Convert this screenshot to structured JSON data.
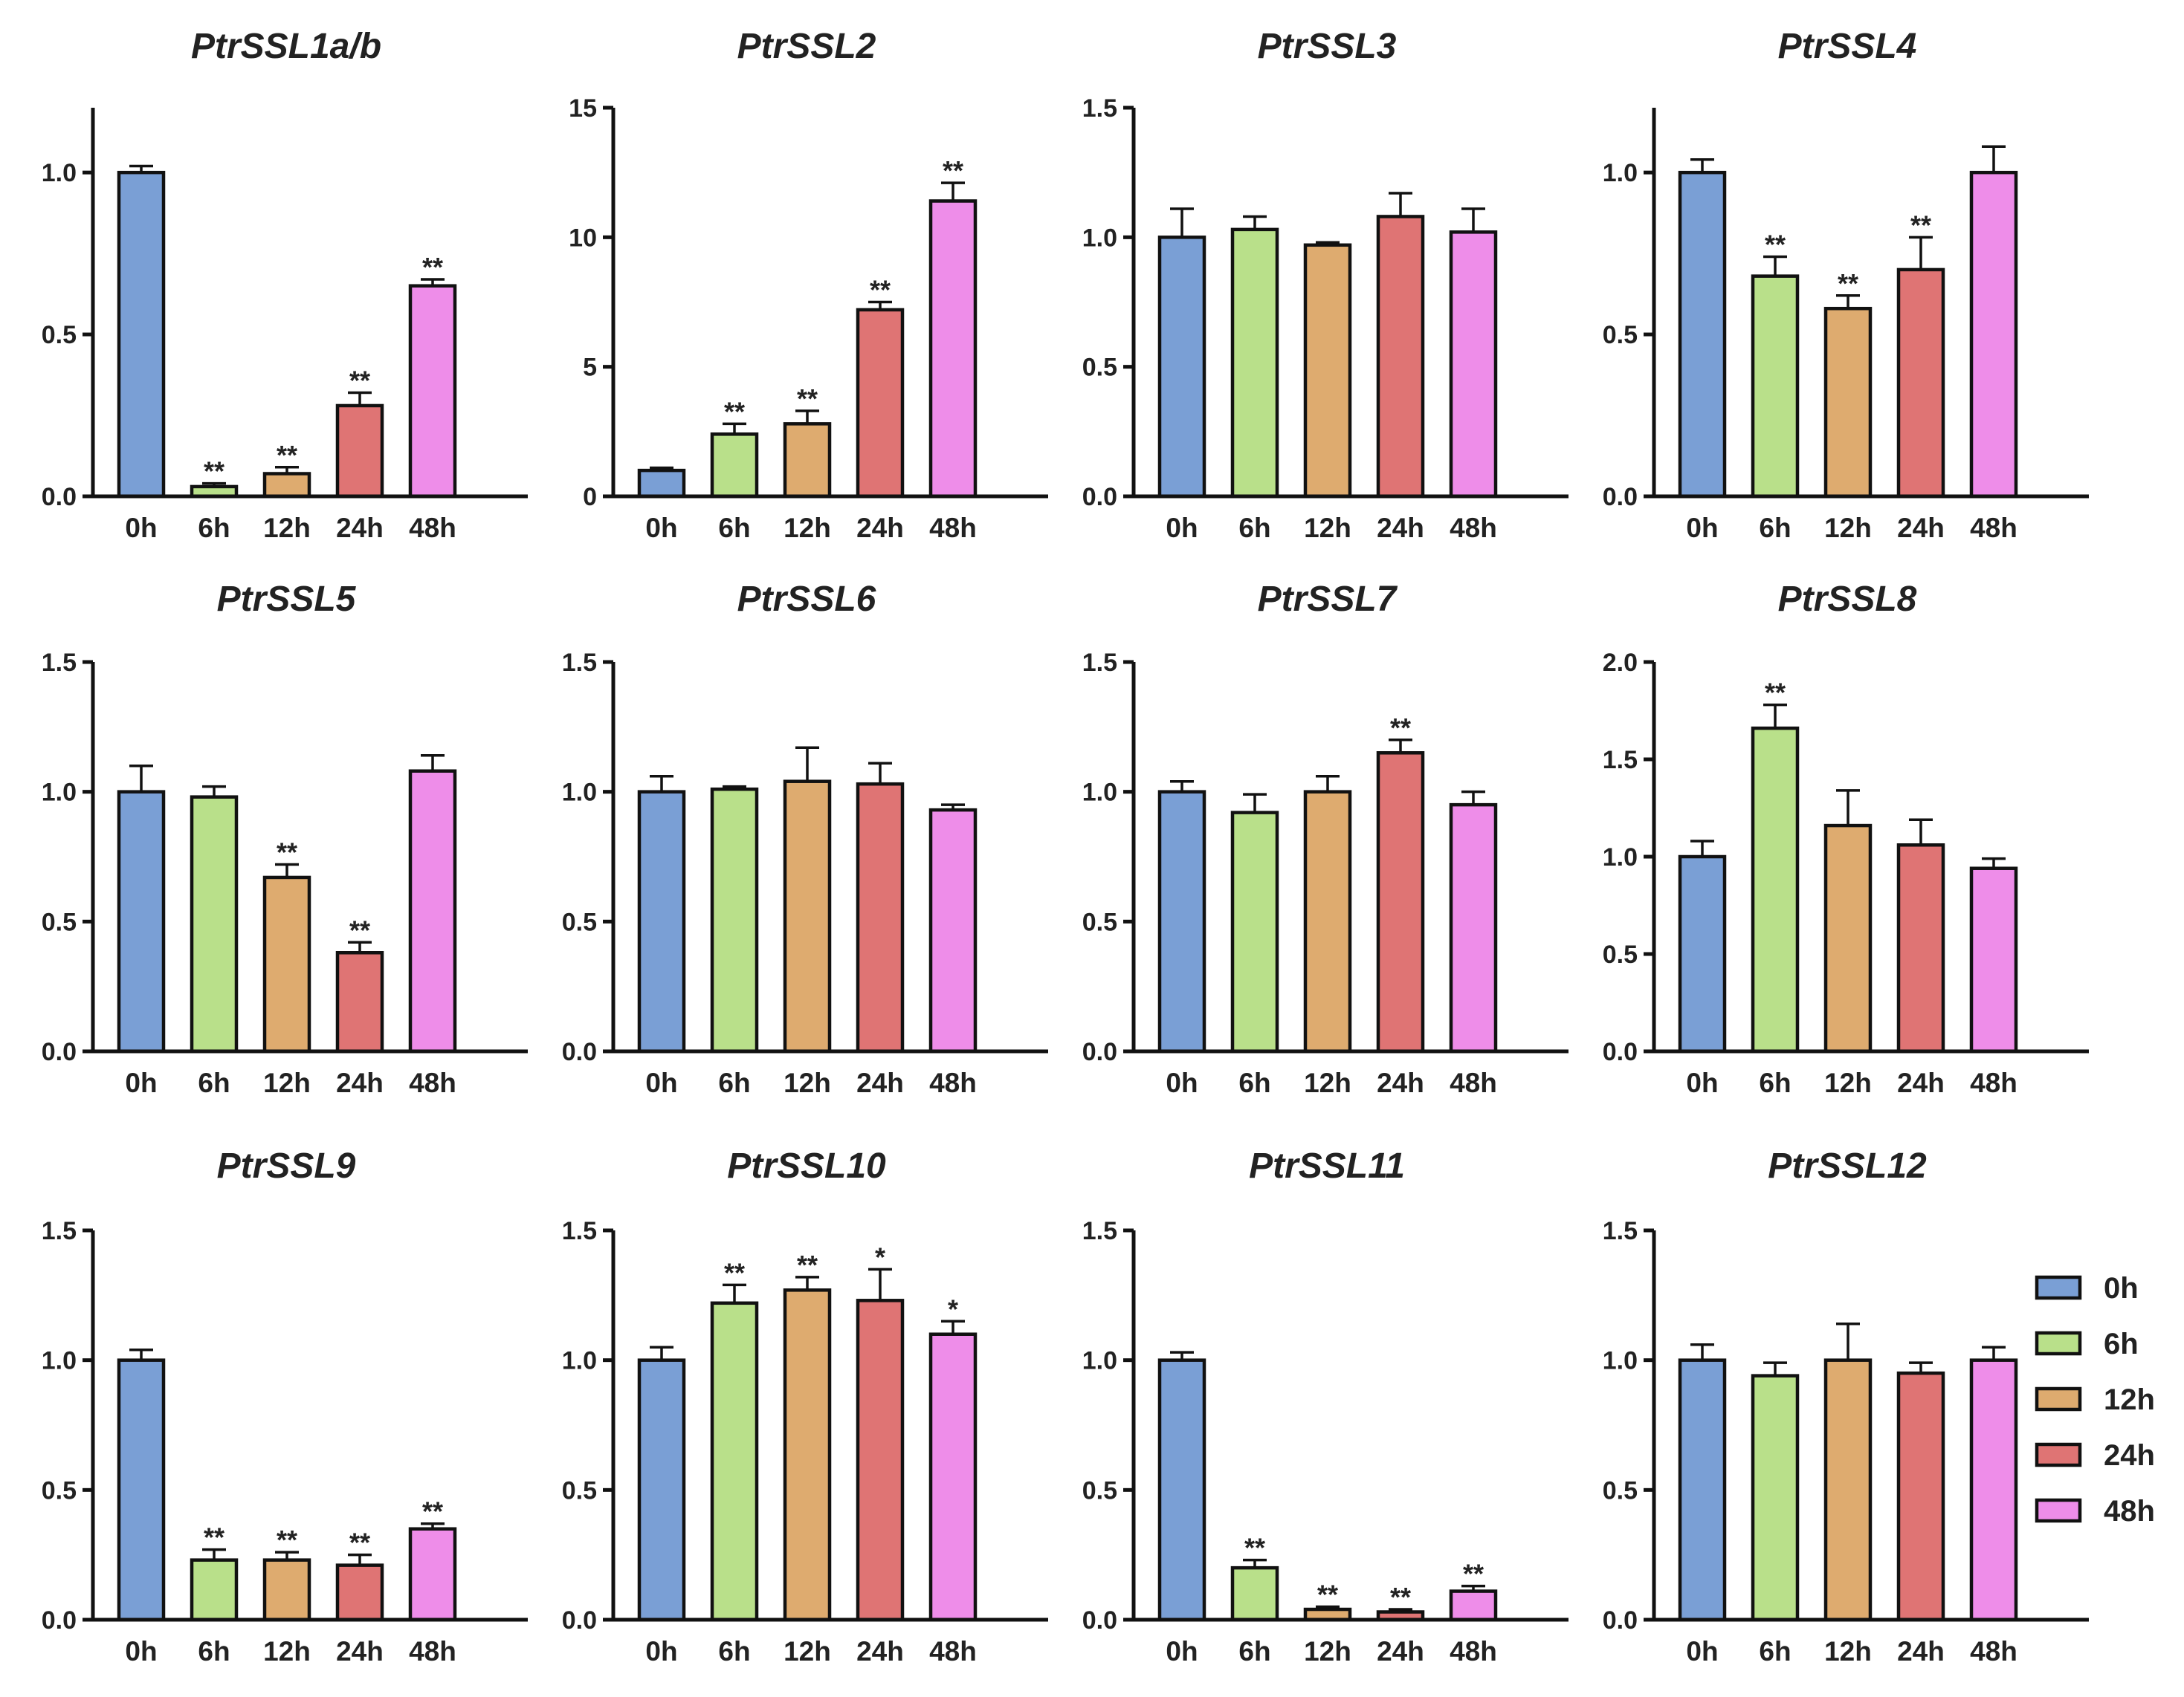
{
  "chart_data": [
    {
      "type": "bar",
      "title": "PtrSSL1a/b",
      "categories": [
        "0h",
        "6h",
        "12h",
        "24h",
        "48h"
      ],
      "values": [
        1.0,
        0.03,
        0.07,
        0.28,
        0.65
      ],
      "errors": [
        0.02,
        0.01,
        0.02,
        0.04,
        0.02
      ],
      "significance": [
        "",
        "**",
        "**",
        "**",
        "**"
      ],
      "ylim": [
        0,
        1.2
      ],
      "yticks": [
        "0.0",
        "0.5",
        "1.0"
      ]
    },
    {
      "type": "bar",
      "title": "PtrSSL2",
      "categories": [
        "0h",
        "6h",
        "12h",
        "24h",
        "48h"
      ],
      "values": [
        1.0,
        2.4,
        2.8,
        7.2,
        11.4
      ],
      "errors": [
        0.1,
        0.4,
        0.5,
        0.3,
        0.7
      ],
      "significance": [
        "",
        "**",
        "**",
        "**",
        "**"
      ],
      "ylim": [
        0,
        15
      ],
      "yticks": [
        "0",
        "5",
        "10",
        "15"
      ]
    },
    {
      "type": "bar",
      "title": "PtrSSL3",
      "categories": [
        "0h",
        "6h",
        "12h",
        "24h",
        "48h"
      ],
      "values": [
        1.0,
        1.03,
        0.97,
        1.08,
        1.02
      ],
      "errors": [
        0.11,
        0.05,
        0.01,
        0.09,
        0.09
      ],
      "significance": [
        "",
        "",
        "",
        "",
        ""
      ],
      "ylim": [
        0,
        1.5
      ],
      "yticks": [
        "0.0",
        "0.5",
        "1.0",
        "1.5"
      ]
    },
    {
      "type": "bar",
      "title": "PtrSSL4",
      "categories": [
        "0h",
        "6h",
        "12h",
        "24h",
        "48h"
      ],
      "values": [
        1.0,
        0.68,
        0.58,
        0.7,
        1.0
      ],
      "errors": [
        0.04,
        0.06,
        0.04,
        0.1,
        0.08
      ],
      "significance": [
        "",
        "**",
        "**",
        "**",
        ""
      ],
      "ylim": [
        0,
        1.2
      ],
      "yticks": [
        "0.0",
        "0.5",
        "1.0"
      ]
    },
    {
      "type": "bar",
      "title": "PtrSSL5",
      "categories": [
        "0h",
        "6h",
        "12h",
        "24h",
        "48h"
      ],
      "values": [
        1.0,
        0.98,
        0.67,
        0.38,
        1.08
      ],
      "errors": [
        0.1,
        0.04,
        0.05,
        0.04,
        0.06
      ],
      "significance": [
        "",
        "",
        "**",
        "**",
        ""
      ],
      "ylim": [
        0,
        1.5
      ],
      "yticks": [
        "0.0",
        "0.5",
        "1.0",
        "1.5"
      ]
    },
    {
      "type": "bar",
      "title": "PtrSSL6",
      "categories": [
        "0h",
        "6h",
        "12h",
        "24h",
        "48h"
      ],
      "values": [
        1.0,
        1.01,
        1.04,
        1.03,
        0.93
      ],
      "errors": [
        0.06,
        0.01,
        0.13,
        0.08,
        0.02
      ],
      "significance": [
        "",
        "",
        "",
        "",
        ""
      ],
      "ylim": [
        0,
        1.5
      ],
      "yticks": [
        "0.0",
        "0.5",
        "1.0",
        "1.5"
      ]
    },
    {
      "type": "bar",
      "title": "PtrSSL7",
      "categories": [
        "0h",
        "6h",
        "12h",
        "24h",
        "48h"
      ],
      "values": [
        1.0,
        0.92,
        1.0,
        1.15,
        0.95
      ],
      "errors": [
        0.04,
        0.07,
        0.06,
        0.05,
        0.05
      ],
      "significance": [
        "",
        "",
        "",
        "**",
        ""
      ],
      "ylim": [
        0,
        1.5
      ],
      "yticks": [
        "0.0",
        "0.5",
        "1.0",
        "1.5"
      ]
    },
    {
      "type": "bar",
      "title": "PtrSSL8",
      "categories": [
        "0h",
        "6h",
        "12h",
        "24h",
        "48h"
      ],
      "values": [
        1.0,
        1.66,
        1.16,
        1.06,
        0.94
      ],
      "errors": [
        0.08,
        0.12,
        0.18,
        0.13,
        0.05
      ],
      "significance": [
        "",
        "**",
        "",
        "",
        ""
      ],
      "ylim": [
        0,
        2.0
      ],
      "yticks": [
        "0.0",
        "0.5",
        "1.0",
        "1.5",
        "2.0"
      ]
    },
    {
      "type": "bar",
      "title": "PtrSSL9",
      "categories": [
        "0h",
        "6h",
        "12h",
        "24h",
        "48h"
      ],
      "values": [
        1.0,
        0.23,
        0.23,
        0.21,
        0.35
      ],
      "errors": [
        0.04,
        0.04,
        0.03,
        0.04,
        0.02
      ],
      "significance": [
        "",
        "**",
        "**",
        "**",
        "**"
      ],
      "ylim": [
        0,
        1.5
      ],
      "yticks": [
        "0.0",
        "0.5",
        "1.0",
        "1.5"
      ]
    },
    {
      "type": "bar",
      "title": "PtrSSL10",
      "categories": [
        "0h",
        "6h",
        "12h",
        "24h",
        "48h"
      ],
      "values": [
        1.0,
        1.22,
        1.27,
        1.23,
        1.1
      ],
      "errors": [
        0.05,
        0.07,
        0.05,
        0.12,
        0.05
      ],
      "significance": [
        "",
        "**",
        "**",
        "*",
        "*"
      ],
      "ylim": [
        0,
        1.5
      ],
      "yticks": [
        "0.0",
        "0.5",
        "1.0",
        "1.5"
      ]
    },
    {
      "type": "bar",
      "title": "PtrSSL11",
      "categories": [
        "0h",
        "6h",
        "12h",
        "24h",
        "48h"
      ],
      "values": [
        1.0,
        0.2,
        0.04,
        0.03,
        0.11
      ],
      "errors": [
        0.03,
        0.03,
        0.01,
        0.01,
        0.02
      ],
      "significance": [
        "",
        "**",
        "**",
        "**",
        "**"
      ],
      "ylim": [
        0,
        1.5
      ],
      "yticks": [
        "0.0",
        "0.5",
        "1.0",
        "1.5"
      ]
    },
    {
      "type": "bar",
      "title": "PtrSSL12",
      "categories": [
        "0h",
        "6h",
        "12h",
        "24h",
        "48h"
      ],
      "values": [
        1.0,
        0.94,
        1.0,
        0.95,
        1.0
      ],
      "errors": [
        0.06,
        0.05,
        0.14,
        0.04,
        0.05
      ],
      "significance": [
        "",
        "",
        "",
        "",
        ""
      ],
      "ylim": [
        0,
        1.5
      ],
      "yticks": [
        "0.0",
        "0.5",
        "1.0",
        "1.5"
      ]
    }
  ],
  "legend": {
    "entries": [
      "0h",
      "6h",
      "12h",
      "24h",
      "48h"
    ],
    "placement": "right"
  },
  "colors": {
    "0h": "#7a9fd5",
    "6h": "#b9e08a",
    "12h": "#deab6f",
    "24h": "#df7474",
    "48h": "#ee8de9"
  }
}
